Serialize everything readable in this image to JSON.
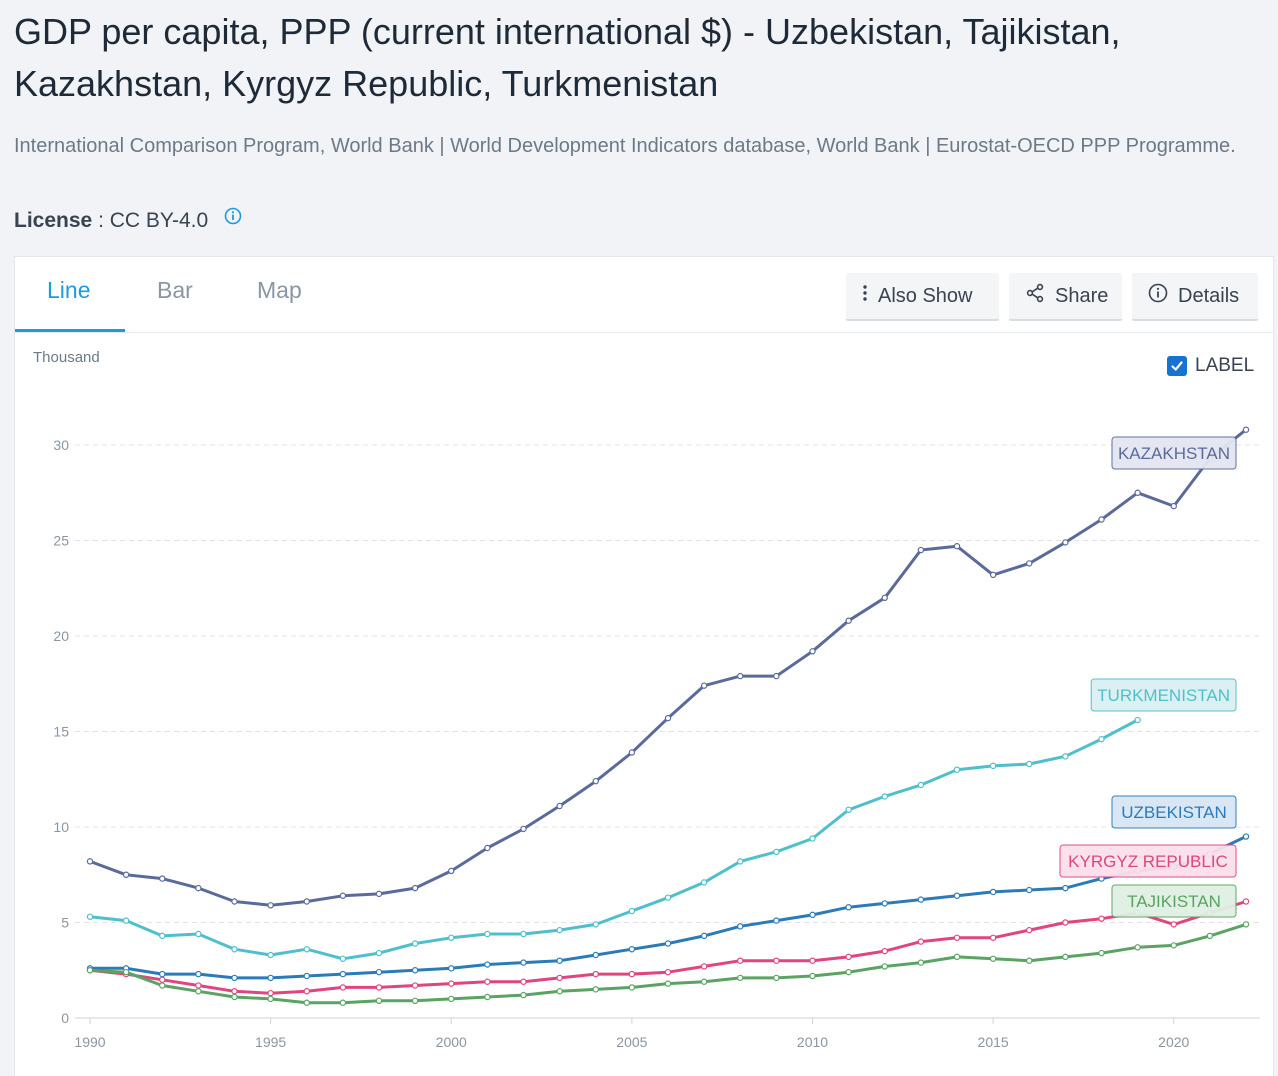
{
  "header": {
    "title": "GDP per capita, PPP (current international $) - Uzbekistan, Tajikistan, Kazakhstan, Kyrgyz Republic, Turkmenistan",
    "source": "International Comparison Program, World Bank | World Development Indicators database, World Bank | Eurostat-OECD PPP Programme.",
    "license_label": "License",
    "license_value": ": CC BY-4.0"
  },
  "tabs": [
    {
      "label": "Line"
    },
    {
      "label": "Bar"
    },
    {
      "label": "Map"
    }
  ],
  "actions": {
    "also_show": "Also Show",
    "share": "Share",
    "details": "Details"
  },
  "label_toggle": "LABEL",
  "colors": {
    "accent": "#1d9ae0"
  },
  "chart_data": {
    "type": "line",
    "title": "GDP per capita, PPP (current international $)",
    "ylabel": "Thousand",
    "xlabel": "",
    "ylim": [
      0,
      32
    ],
    "yticks": [
      0,
      5,
      10,
      15,
      20,
      25,
      30
    ],
    "xlim": [
      1990,
      2022
    ],
    "xticks": [
      1990,
      1995,
      2000,
      2005,
      2010,
      2015,
      2020
    ],
    "grid": true,
    "x": [
      1990,
      1991,
      1992,
      1993,
      1994,
      1995,
      1996,
      1997,
      1998,
      1999,
      2000,
      2001,
      2002,
      2003,
      2004,
      2005,
      2006,
      2007,
      2008,
      2009,
      2010,
      2011,
      2012,
      2013,
      2014,
      2015,
      2016,
      2017,
      2018,
      2019,
      2020,
      2021,
      2022
    ],
    "series": [
      {
        "name": "Kazakhstan",
        "label": "KAZAKHSTAN",
        "color": "#5a6b9b",
        "label_bg": "#e3e6f1",
        "values": [
          8.2,
          7.5,
          7.3,
          6.8,
          6.1,
          5.9,
          6.1,
          6.4,
          6.5,
          6.8,
          7.7,
          8.9,
          9.9,
          11.1,
          12.4,
          13.9,
          15.7,
          17.4,
          17.9,
          17.9,
          19.2,
          20.8,
          22.0,
          24.5,
          24.7,
          23.2,
          23.8,
          24.9,
          26.1,
          27.5,
          26.8,
          29.3,
          30.8
        ]
      },
      {
        "name": "Turkmenistan",
        "label": "TURKMENISTAN",
        "color": "#4fbfcb",
        "label_bg": "#daf0f2",
        "values": [
          5.3,
          5.1,
          4.3,
          4.4,
          3.6,
          3.3,
          3.6,
          3.1,
          3.4,
          3.9,
          4.2,
          4.4,
          4.4,
          4.6,
          4.9,
          5.6,
          6.3,
          7.1,
          8.2,
          8.7,
          9.4,
          10.9,
          11.6,
          12.2,
          13.0,
          13.2,
          13.3,
          13.7,
          14.6,
          15.6,
          null,
          null,
          null
        ]
      },
      {
        "name": "Uzbekistan",
        "label": "UZBEKISTAN",
        "color": "#2b7bb9",
        "label_bg": "#d6e6f3",
        "values": [
          2.6,
          2.6,
          2.3,
          2.3,
          2.1,
          2.1,
          2.2,
          2.3,
          2.4,
          2.5,
          2.6,
          2.8,
          2.9,
          3.0,
          3.3,
          3.6,
          3.9,
          4.3,
          4.8,
          5.1,
          5.4,
          5.8,
          6.0,
          6.2,
          6.4,
          6.6,
          6.7,
          6.8,
          7.3,
          7.7,
          7.9,
          8.6,
          9.5
        ]
      },
      {
        "name": "Kyrgyz Republic",
        "label": "KYRGYZ REPUBLIC",
        "color": "#e0457f",
        "label_bg": "#fbe0ea",
        "values": [
          2.5,
          2.3,
          2.0,
          1.7,
          1.4,
          1.3,
          1.4,
          1.6,
          1.6,
          1.7,
          1.8,
          1.9,
          1.9,
          2.1,
          2.3,
          2.3,
          2.4,
          2.7,
          3.0,
          3.0,
          3.0,
          3.2,
          3.5,
          4.0,
          4.2,
          4.2,
          4.6,
          5.0,
          5.2,
          5.5,
          4.9,
          5.5,
          6.1
        ]
      },
      {
        "name": "Tajikistan",
        "label": "TAJIKISTAN",
        "color": "#5aa363",
        "label_bg": "#dff0e1",
        "values": [
          2.5,
          2.4,
          1.7,
          1.4,
          1.1,
          1.0,
          0.8,
          0.8,
          0.9,
          0.9,
          1.0,
          1.1,
          1.2,
          1.4,
          1.5,
          1.6,
          1.8,
          1.9,
          2.1,
          2.1,
          2.2,
          2.4,
          2.7,
          2.9,
          3.2,
          3.1,
          3.0,
          3.2,
          3.4,
          3.7,
          3.8,
          4.3,
          4.9
        ]
      }
    ]
  }
}
